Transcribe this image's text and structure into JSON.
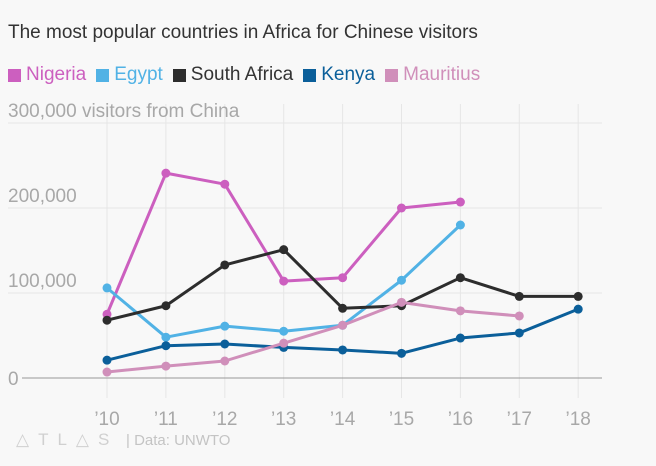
{
  "chart_data": {
    "type": "line",
    "title": "The most popular countries in Africa for Chinese visitors",
    "ylabel": "visitors from China",
    "xlabel": "",
    "x": [
      2010,
      2011,
      2012,
      2013,
      2014,
      2015,
      2016,
      2017,
      2018
    ],
    "x_tick_labels": [
      "’10",
      "’11",
      "’12",
      "’13",
      "’14",
      "’15",
      "’16",
      "’17",
      "’18"
    ],
    "y_tick_labels": [
      "0",
      "100,000",
      "200,000",
      "300,000 visitors from China"
    ],
    "y_ticks": [
      0,
      100000,
      200000,
      300000
    ],
    "ylim": [
      0,
      300000
    ],
    "grid": true,
    "legend_placement": "top-left",
    "series": [
      {
        "name": "Nigeria",
        "color": "#cc5fbf",
        "values": [
          75000,
          241000,
          228000,
          114000,
          118000,
          200000,
          207000,
          null,
          null
        ]
      },
      {
        "name": "Egypt",
        "color": "#51b2e5",
        "values": [
          106000,
          48000,
          61000,
          55000,
          62000,
          115000,
          180000,
          null,
          null
        ]
      },
      {
        "name": "South Africa",
        "color": "#2d2d2d",
        "values": [
          68000,
          85000,
          133000,
          151000,
          82000,
          85000,
          118000,
          96000,
          96000
        ]
      },
      {
        "name": "Kenya",
        "color": "#0b5f9a",
        "values": [
          21000,
          38000,
          40000,
          36000,
          33000,
          29000,
          47000,
          53000,
          81000
        ]
      },
      {
        "name": "Mauritius",
        "color": "#d08fba",
        "values": [
          7000,
          14000,
          20000,
          41000,
          62000,
          89000,
          79000,
          73000,
          null
        ]
      }
    ]
  },
  "footer": {
    "logo": "ATLAS",
    "source": "| Data: UNWTO"
  }
}
